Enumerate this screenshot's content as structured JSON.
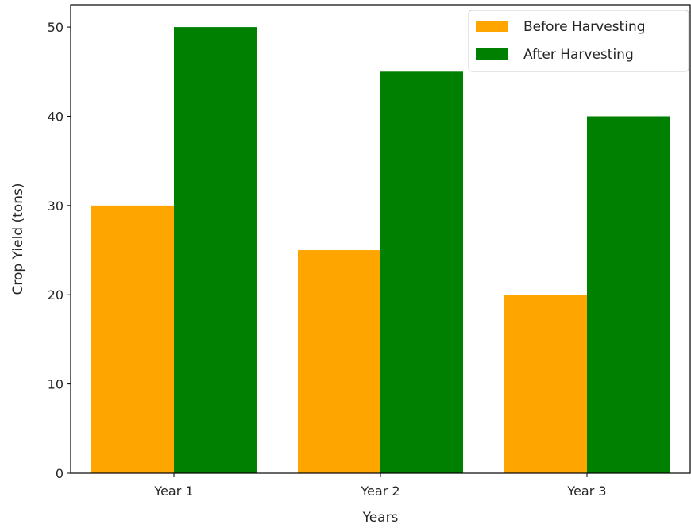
{
  "chart_data": {
    "type": "bar",
    "title": "",
    "xlabel": "Years",
    "ylabel": "Crop Yield (tons)",
    "categories": [
      "Year 1",
      "Year 2",
      "Year 3"
    ],
    "series": [
      {
        "name": "Before Harvesting",
        "values": [
          30,
          25,
          20
        ],
        "color": "#ffa500"
      },
      {
        "name": "After Harvesting",
        "values": [
          50,
          45,
          40
        ],
        "color": "#008000"
      }
    ],
    "ylim": [
      0,
      52.5
    ],
    "yticks": [
      0,
      10,
      20,
      30,
      40,
      50
    ],
    "grid": false,
    "legend_position": "top-right"
  }
}
